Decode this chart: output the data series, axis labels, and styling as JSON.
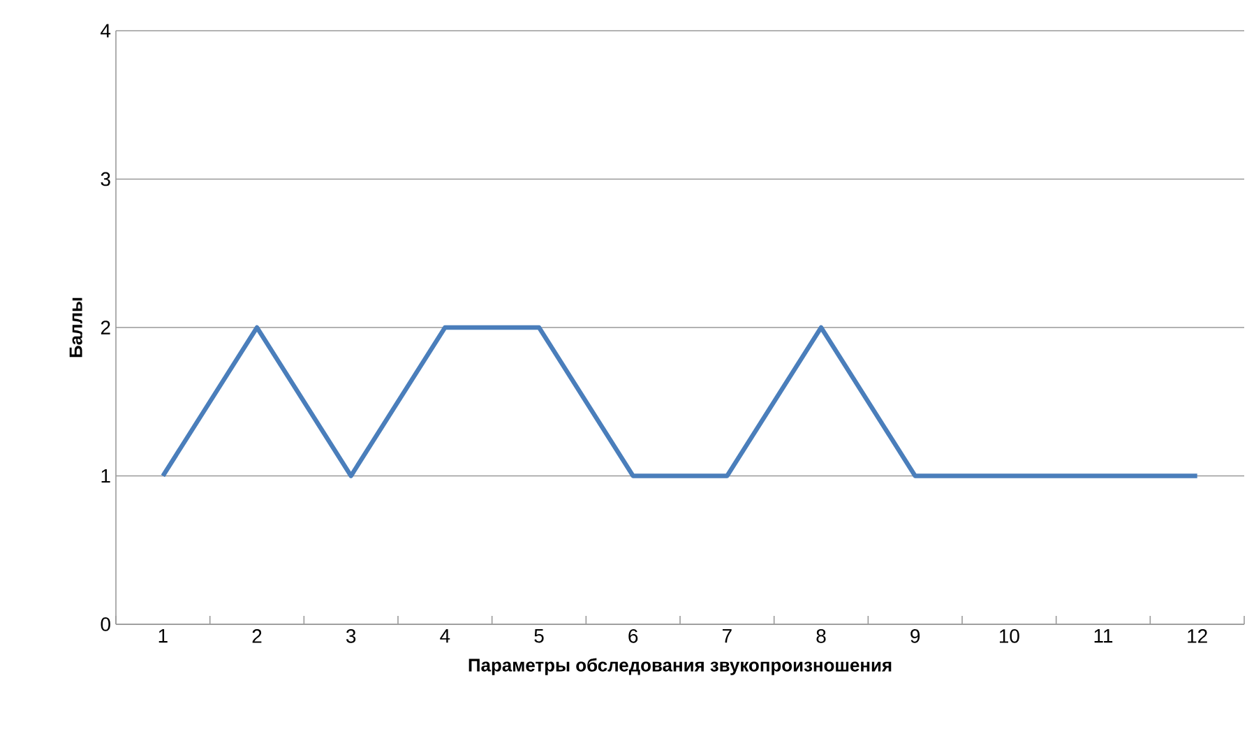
{
  "chart_data": {
    "type": "line",
    "xlabel": "Параметры обследования звукопроизношения",
    "ylabel": "Баллы",
    "categories": [
      "1",
      "2",
      "3",
      "4",
      "5",
      "6",
      "7",
      "8",
      "9",
      "10",
      "11",
      "12"
    ],
    "series": [
      {
        "color": "#4a7ebb",
        "values": [
          1,
          2,
          1,
          2,
          2,
          1,
          1,
          2,
          1,
          1,
          1,
          1
        ]
      }
    ],
    "ylim": [
      0,
      4
    ],
    "yticks": [
      0,
      1,
      2,
      3,
      4
    ],
    "grid": "y",
    "marker": "none",
    "line_style": "solid"
  }
}
